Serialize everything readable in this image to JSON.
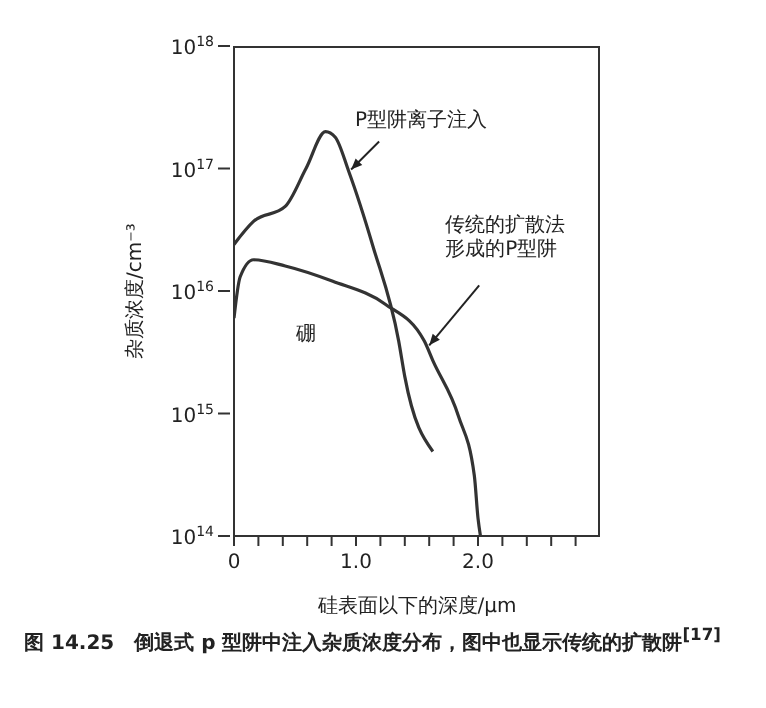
{
  "chart_data": {
    "type": "line",
    "xlabel": "硅表面以下的深度/μm",
    "ylabel": "杂质浓度/cm⁻³",
    "xlim": [
      0,
      3
    ],
    "xticks": [
      {
        "value": 0,
        "label": "0"
      },
      {
        "value": 0.2,
        "label": null
      },
      {
        "value": 0.4,
        "label": null
      },
      {
        "value": 0.6,
        "label": null
      },
      {
        "value": 0.8,
        "label": null
      },
      {
        "value": 1,
        "label": "1.0"
      },
      {
        "value": 1.2,
        "label": null
      },
      {
        "value": 1.4,
        "label": null
      },
      {
        "value": 1.6,
        "label": null
      },
      {
        "value": 1.8,
        "label": null
      },
      {
        "value": 2,
        "label": "2.0"
      },
      {
        "value": 2.2,
        "label": null
      },
      {
        "value": 2.4,
        "label": null
      },
      {
        "value": 2.6,
        "label": null
      },
      {
        "value": 2.8,
        "label": null
      }
    ],
    "ylim": [
      100000000000000.0,
      1e+18
    ],
    "yticks": [
      {
        "value": 100000000000000.0,
        "label": "10$^{14}$"
      },
      {
        "value": 1000000000000000.0,
        "label": "10$^{15}$"
      },
      {
        "value": 1e+16,
        "label": "10$^{16}$"
      },
      {
        "value": 1e+17,
        "label": "10$^{17}$"
      },
      {
        "value": 1e+18,
        "label": "10$^{18}$"
      }
    ],
    "log": "y",
    "marker": "none",
    "line_style": "solid",
    "series": [
      {
        "color": "#333333",
        "x": [
          0,
          0.16,
          0.42,
          0.59,
          0.75,
          0.83,
          0.94,
          1.14,
          1.35,
          1.4,
          1.63
        ],
        "values": [
          2.4e+16,
          3.7e+16,
          4.9e+16,
          1e+17,
          2e+17,
          1.8e+17,
          9.5e+16,
          2.3e+16,
          3900000000000000.0,
          2000000000000000.0,
          490000000000000.0
        ]
      },
      {
        "color": "#333333",
        "x": [
          0,
          0.05,
          0.16,
          0.42,
          0.81,
          1.24,
          1.56,
          1.63,
          1.84,
          1.97,
          2.0,
          2.02
        ],
        "values": [
          6000000000000000.0,
          1.3e+16,
          1.8e+16,
          1.6e+16,
          1.2e+16,
          7800000000000000.0,
          3900000000000000.0,
          2700000000000000.0,
          950000000000000.0,
          310000000000000.0,
          140000000000000.0,
          100000000000000.0
        ]
      }
    ],
    "annotations": [
      {
        "text": "P型阱离子注入",
        "x": 0.96,
        "y": 9.8e+16
      },
      {
        "text": "传统的扩散法形成的P型阱",
        "x": 1.6,
        "y": 3600000000000000.0
      },
      "硼",
      "图 14.25　倒退式 p 型阱中注入杂质浓度分布，图中也显示传统的扩散阱$^{[17]}$"
    ]
  }
}
